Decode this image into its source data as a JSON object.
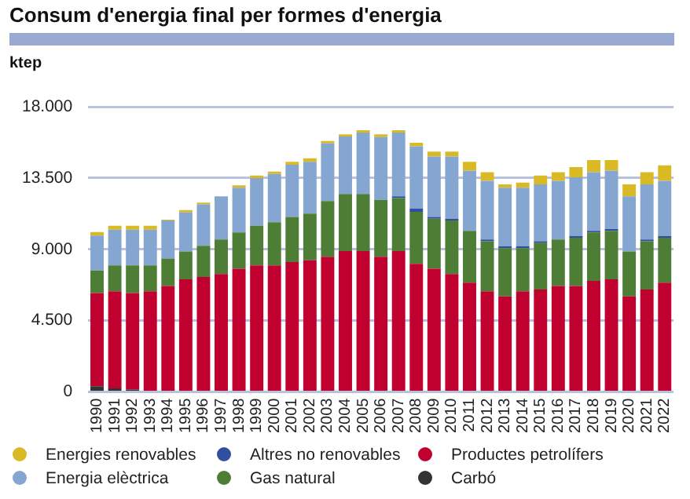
{
  "chart_data": {
    "type": "bar",
    "title": "Consum d'energia final per formes d'energia",
    "ylabel": "ktep",
    "stacked": true,
    "grid": "y",
    "legend": "bottom",
    "categories": [
      "1990",
      "1991",
      "1992",
      "1993",
      "1994",
      "1995",
      "1996",
      "1997",
      "1998",
      "1999",
      "2000",
      "2001",
      "2002",
      "2003",
      "2004",
      "2005",
      "2006",
      "2007",
      "2008",
      "2009",
      "2010",
      "2011",
      "2012",
      "2013",
      "2014",
      "2015",
      "2016",
      "2017",
      "2018",
      "2019",
      "2020",
      "2021",
      "2022"
    ],
    "ylim": [
      0,
      18000
    ],
    "yticks": [
      {
        "value": 0,
        "label": "0"
      },
      {
        "value": 4500,
        "label": "4.500"
      },
      {
        "value": 9000,
        "label": "9.000"
      },
      {
        "value": 13500,
        "label": "13.500"
      },
      {
        "value": 18000,
        "label": "18.000"
      }
    ],
    "series": [
      {
        "name": "Carbó",
        "color": "#333333",
        "values": [
          360,
          220,
          150,
          0,
          0,
          0,
          null,
          0,
          0,
          0,
          0,
          0,
          0,
          0,
          0,
          0,
          0,
          0,
          0,
          0,
          0,
          0,
          0,
          0,
          0,
          0,
          0,
          0,
          0,
          0,
          0,
          0,
          0
        ]
      },
      {
        "name": "Productes petrolífers",
        "color": "#c0002e",
        "values": [
          5880,
          6130,
          6090,
          6350,
          6680,
          7110,
          7260,
          7440,
          7770,
          7990,
          7990,
          8200,
          8310,
          8530,
          8890,
          8890,
          8530,
          8890,
          8090,
          7770,
          7440,
          6900,
          6350,
          6030,
          6350,
          6460,
          6680,
          6680,
          7010,
          7110,
          6030,
          6460,
          6900
        ]
      },
      {
        "name": "Gas natural",
        "color": "#4e7d36",
        "values": [
          1420,
          1640,
          1750,
          1640,
          1740,
          1750,
          1960,
          2180,
          2290,
          2500,
          2720,
          2840,
          2940,
          3520,
          3600,
          3600,
          3590,
          3340,
          3270,
          3160,
          3380,
          3260,
          3160,
          3050,
          2730,
          2940,
          2940,
          3050,
          3050,
          3050,
          2830,
          3050,
          2830
        ]
      },
      {
        "name": "Altres no renovables",
        "color": "#2f4f9f",
        "values": [
          0,
          0,
          0,
          0,
          0,
          0,
          0,
          0,
          0,
          0,
          0,
          0,
          0,
          0,
          0,
          0,
          0,
          110,
          220,
          110,
          110,
          0,
          110,
          100,
          100,
          110,
          0,
          110,
          100,
          110,
          0,
          110,
          110
        ]
      },
      {
        "name": "Energia elèctrica",
        "color": "#85a6d0",
        "values": [
          2210,
          2250,
          2250,
          2250,
          2400,
          2470,
          2620,
          2720,
          2830,
          3010,
          3050,
          3300,
          3270,
          3630,
          3630,
          3880,
          3960,
          4030,
          3920,
          3810,
          3920,
          3810,
          3700,
          3710,
          3710,
          3590,
          3700,
          3700,
          3710,
          3700,
          3480,
          3480,
          3480
        ]
      },
      {
        "name": "Energies renovables",
        "color": "#d9b924",
        "values": [
          220,
          250,
          250,
          250,
          50,
          140,
          110,
          0,
          140,
          150,
          140,
          180,
          220,
          150,
          140,
          150,
          180,
          150,
          220,
          320,
          320,
          550,
          550,
          210,
          320,
          550,
          550,
          650,
          760,
          660,
          760,
          770,
          980
        ]
      }
    ]
  }
}
